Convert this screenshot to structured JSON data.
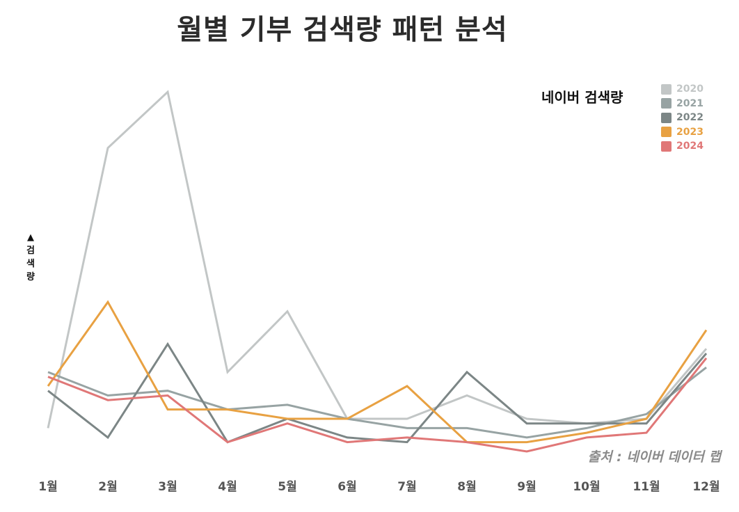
{
  "chart_data": {
    "type": "line",
    "title": "월별 기부 검색량 패턴 분석",
    "subtitle": "네이버 검색량",
    "ylabel": "▲검색량",
    "xlabel": "",
    "source": "출처 : 네이버 데이터 랩",
    "categories": [
      "1월",
      "2월",
      "3월",
      "4월",
      "5월",
      "6월",
      "7월",
      "8월",
      "9월",
      "10월",
      "11월",
      "12월"
    ],
    "ylim": [
      0,
      80
    ],
    "grid": false,
    "legend_position": "top-right",
    "series": [
      {
        "name": "2020",
        "color": "#c2c6c6",
        "values": [
          5,
          65,
          77,
          17,
          30,
          7,
          7,
          12,
          7,
          6,
          7,
          22
        ]
      },
      {
        "name": "2021",
        "color": "#97a3a3",
        "values": [
          17,
          12,
          13,
          9,
          10,
          7,
          5,
          5,
          3,
          5,
          8,
          18
        ]
      },
      {
        "name": "2022",
        "color": "#7c8686",
        "values": [
          13,
          3,
          23,
          2,
          7,
          3,
          2,
          17,
          6,
          6,
          6,
          21
        ]
      },
      {
        "name": "2023",
        "color": "#e8a142",
        "values": [
          14,
          32,
          9,
          9,
          7,
          7,
          14,
          2,
          2,
          4,
          7,
          26
        ]
      },
      {
        "name": "2024",
        "color": "#e07777",
        "values": [
          16,
          11,
          12,
          2,
          6,
          2,
          3,
          2,
          0,
          3,
          4,
          20
        ]
      }
    ]
  }
}
